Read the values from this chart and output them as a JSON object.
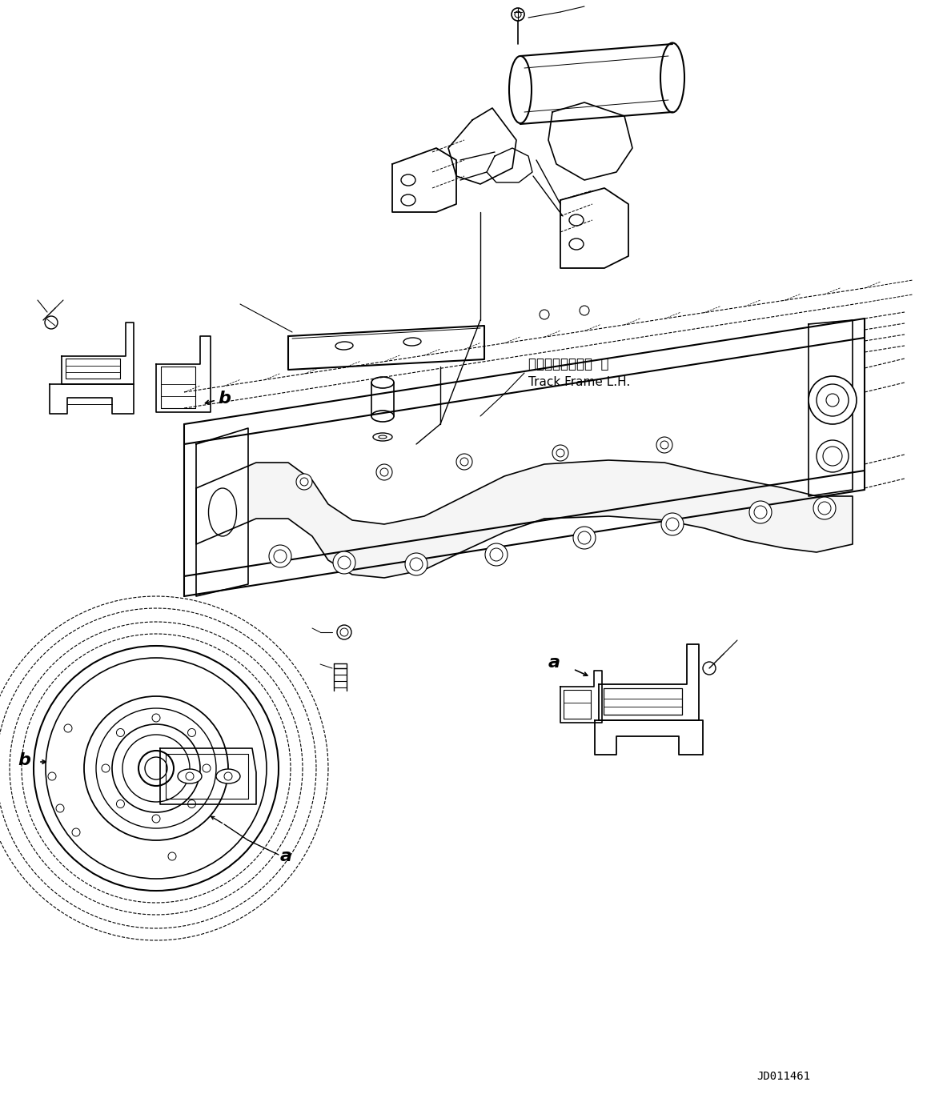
{
  "background_color": "#ffffff",
  "line_color": "#000000",
  "figure_width": 11.63,
  "figure_height": 13.72,
  "dpi": 100,
  "track_frame_label_ja": "トラックフレーム  左",
  "track_frame_label_en": "Track Frame L.H.",
  "part_number": "JD011461",
  "label_a1": "a",
  "label_b1": "b",
  "label_a2": "a"
}
